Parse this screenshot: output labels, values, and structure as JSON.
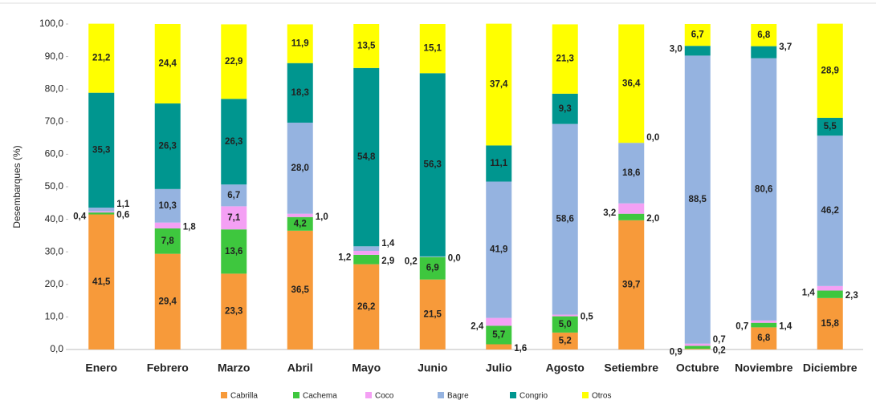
{
  "chart_data": {
    "type": "stacked_bar",
    "y_label": "Desembarques (%)",
    "categories": [
      "Enero",
      "Febrero",
      "Marzo",
      "Abril",
      "Mayo",
      "Junio",
      "Julio",
      "Agosto",
      "Setiembre",
      "Octubre",
      "Noviembre",
      "Diciembre"
    ],
    "series": [
      {
        "name": "Cabrilla",
        "color": "#f79a3a",
        "values": [
          41.5,
          29.4,
          23.3,
          36.5,
          26.2,
          21.5,
          1.6,
          5.2,
          39.7,
          0.2,
          6.8,
          15.8
        ],
        "value_labels": [
          "41,5",
          "29,4",
          "23,3",
          "36,5",
          "26,2",
          "21,5",
          "1,6",
          "5,2",
          "39,7",
          "0,2",
          "6,8",
          "15,8"
        ]
      },
      {
        "name": "Cachema",
        "color": "#3ec73e",
        "values": [
          0.6,
          7.8,
          13.6,
          4.2,
          2.9,
          6.9,
          5.7,
          5.0,
          2.0,
          0.9,
          1.4,
          2.3
        ],
        "value_labels": [
          "0,6",
          "7,8",
          "13,6",
          "4,2",
          "2,9",
          "6,9",
          "5,7",
          "5,0",
          "2,0",
          "0,9",
          "1,4",
          "2,3"
        ]
      },
      {
        "name": "Coco",
        "color": "#f4a0f4",
        "values": [
          0.4,
          1.8,
          7.1,
          1.0,
          1.2,
          0.0,
          2.4,
          0.5,
          3.2,
          0.7,
          0.7,
          1.4
        ],
        "value_labels": [
          "0,4",
          "1,8",
          "7,1",
          "1,0",
          "1,2",
          "0,0",
          "2,4",
          "0,5",
          "3,2",
          "0,7",
          "0,7",
          "1,4"
        ]
      },
      {
        "name": "Bagre",
        "color": "#95b3e0",
        "values": [
          1.1,
          10.3,
          6.7,
          28.0,
          1.4,
          0.2,
          41.9,
          58.6,
          18.6,
          88.5,
          80.6,
          46.2
        ],
        "value_labels": [
          "1,1",
          "10,3",
          "6,7",
          "28,0",
          "1,4",
          "0,2",
          "41,9",
          "58,6",
          "18,6",
          "88,5",
          "80,6",
          "46,2"
        ]
      },
      {
        "name": "Congrio",
        "color": "#00968f",
        "values": [
          35.3,
          26.3,
          26.3,
          18.3,
          54.8,
          56.3,
          11.1,
          9.3,
          0.0,
          3.0,
          3.7,
          5.5
        ],
        "value_labels": [
          "35,3",
          "26,3",
          "26,3",
          "18,3",
          "54,8",
          "56,3",
          "11,1",
          "9,3",
          "0,0",
          "3,0",
          "3,7",
          "5,5"
        ]
      },
      {
        "name": "Otros",
        "color": "#ffff00",
        "values": [
          21.2,
          24.4,
          22.9,
          11.9,
          13.5,
          15.1,
          37.4,
          21.3,
          36.4,
          6.7,
          6.8,
          28.9
        ],
        "value_labels": [
          "21,2",
          "24,4",
          "22,9",
          "11,9",
          "13,5",
          "15,1",
          "37,4",
          "21,3",
          "36,4",
          "6,7",
          "6,8",
          "28,9"
        ]
      }
    ],
    "ylim": [
      0,
      100
    ],
    "yticks": [
      {
        "value": 0,
        "label": "0,0"
      },
      {
        "value": 10,
        "label": "10,0"
      },
      {
        "value": 20,
        "label": "20,0"
      },
      {
        "value": 30,
        "label": "30,0"
      },
      {
        "value": 40,
        "label": "40,0"
      },
      {
        "value": 50,
        "label": "50,0"
      },
      {
        "value": 60,
        "label": "60,0"
      },
      {
        "value": 70,
        "label": "70,0"
      },
      {
        "value": 80,
        "label": "80,0"
      },
      {
        "value": 90,
        "label": "90,0"
      },
      {
        "value": 100,
        "label": "100,0"
      }
    ],
    "grid": false,
    "legend": "bottom"
  }
}
